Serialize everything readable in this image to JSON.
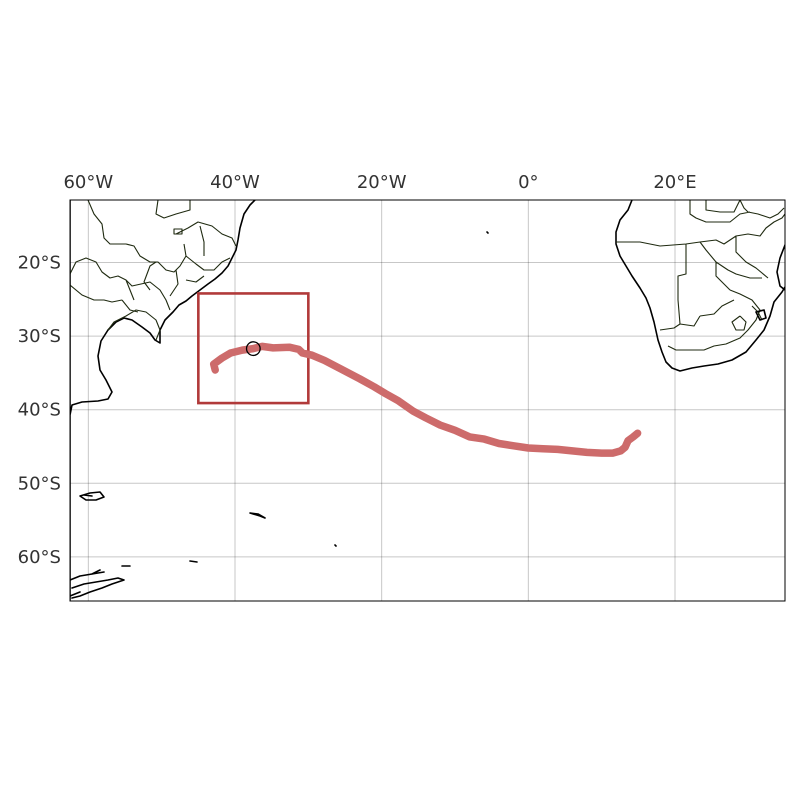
{
  "map": {
    "projection": "PlateCarree",
    "extent": {
      "lon": [
        -62.5,
        35
      ],
      "lat": [
        -66,
        -11.5
      ]
    },
    "gridlines": true,
    "x_ticks": [
      {
        "lon": -60,
        "label": "60°W"
      },
      {
        "lon": -40,
        "label": "40°W"
      },
      {
        "lon": -20,
        "label": "20°W"
      },
      {
        "lon": 0,
        "label": "0°"
      },
      {
        "lon": 20,
        "label": "20°E"
      }
    ],
    "y_ticks": [
      {
        "lat": -20,
        "label": "20°S"
      },
      {
        "lat": -30,
        "label": "30°S"
      },
      {
        "lat": -40,
        "label": "40°S"
      },
      {
        "lat": -50,
        "label": "50°S"
      },
      {
        "lat": -60,
        "label": "60°S"
      }
    ],
    "track": {
      "color": "#cd6b6b",
      "points": [
        [
          -42.7,
          -34.6
        ],
        [
          -42.9,
          -33.8
        ],
        [
          -41.8,
          -33.0
        ],
        [
          -40.6,
          -32.3
        ],
        [
          -39.0,
          -31.9
        ],
        [
          -37.5,
          -31.7
        ],
        [
          -36.3,
          -31.4
        ],
        [
          -34.8,
          -31.6
        ],
        [
          -32.6,
          -31.5
        ],
        [
          -31.3,
          -31.8
        ],
        [
          -30.8,
          -32.3
        ],
        [
          -29.5,
          -32.6
        ],
        [
          -27.8,
          -33.3
        ],
        [
          -25.5,
          -34.5
        ],
        [
          -23.0,
          -35.8
        ],
        [
          -21.0,
          -36.9
        ],
        [
          -19.5,
          -37.8
        ],
        [
          -17.7,
          -38.8
        ],
        [
          -15.7,
          -40.2
        ],
        [
          -14.0,
          -41.1
        ],
        [
          -12.0,
          -42.1
        ],
        [
          -10.0,
          -42.8
        ],
        [
          -8.0,
          -43.7
        ],
        [
          -6.0,
          -44.0
        ],
        [
          -4.0,
          -44.6
        ],
        [
          -2.0,
          -44.9
        ],
        [
          0.0,
          -45.2
        ],
        [
          2.0,
          -45.3
        ],
        [
          4.0,
          -45.4
        ],
        [
          6.0,
          -45.6
        ],
        [
          8.0,
          -45.8
        ],
        [
          10.0,
          -45.9
        ],
        [
          11.5,
          -45.9
        ],
        [
          12.6,
          -45.6
        ],
        [
          13.2,
          -45.1
        ],
        [
          13.6,
          -44.2
        ],
        [
          14.3,
          -43.7
        ],
        [
          14.9,
          -43.2
        ]
      ]
    },
    "marker": {
      "lon": -37.5,
      "lat": -31.7
    },
    "region_box": {
      "color": "#b13a3a",
      "lon": [
        -45,
        -30
      ],
      "lat": [
        -39.1,
        -24.2
      ]
    }
  }
}
